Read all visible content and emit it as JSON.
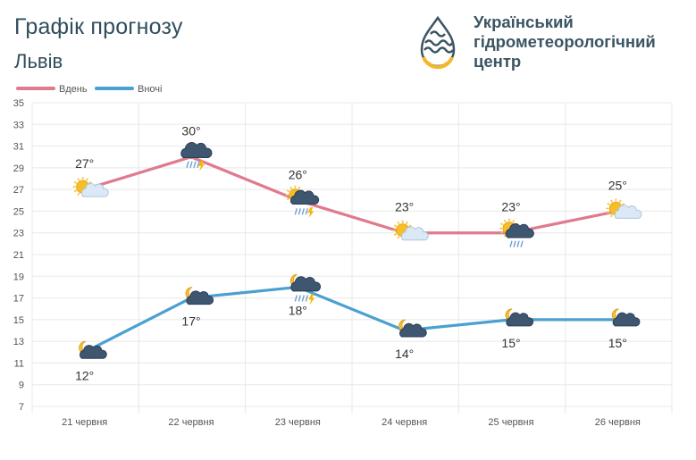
{
  "header": {
    "title": "Графік прогнозу",
    "subtitle": "Львів",
    "org_line1": "Український",
    "org_line2": "гідрометеорологічний",
    "org_line3": "центр"
  },
  "colors": {
    "day": "#e07a8d",
    "night": "#4ca0d1",
    "grid": "#e8e8e8",
    "text": "#333333",
    "brand": "#2f4e5c",
    "logo_yellow": "#f3b72a"
  },
  "chart_data": {
    "type": "line",
    "categories": [
      "21 червня",
      "22 червня",
      "23 червня",
      "24 червня",
      "25 червня",
      "26 червня"
    ],
    "series": [
      {
        "name": "Вдень",
        "values": [
          27,
          30,
          26,
          23,
          23,
          25
        ],
        "labels": [
          "27°",
          "30°",
          "26°",
          "23°",
          "23°",
          "25°"
        ],
        "icons": [
          "sun-cloud-icon",
          "thunderstorm-rain-icon",
          "sun-thunderstorm-rain-icon",
          "sun-cloud-icon",
          "sun-cloud-rain-icon",
          "sun-cloud-icon"
        ]
      },
      {
        "name": "Вночі",
        "values": [
          12,
          17,
          18,
          14,
          15,
          15
        ],
        "labels": [
          "12°",
          "17°",
          "18°",
          "14°",
          "15°",
          "15°"
        ],
        "icons": [
          "moon-cloud-icon",
          "moon-cloud-icon",
          "moon-cloud-rain-thunder-icon",
          "moon-cloud-icon",
          "moon-cloud-icon",
          "moon-cloud-icon"
        ]
      }
    ],
    "yticks": [
      7,
      9,
      11,
      13,
      15,
      17,
      19,
      21,
      23,
      25,
      27,
      29,
      31,
      33,
      35
    ],
    "ylim": [
      7,
      35
    ],
    "legend_position": "top-left",
    "grid": true
  }
}
